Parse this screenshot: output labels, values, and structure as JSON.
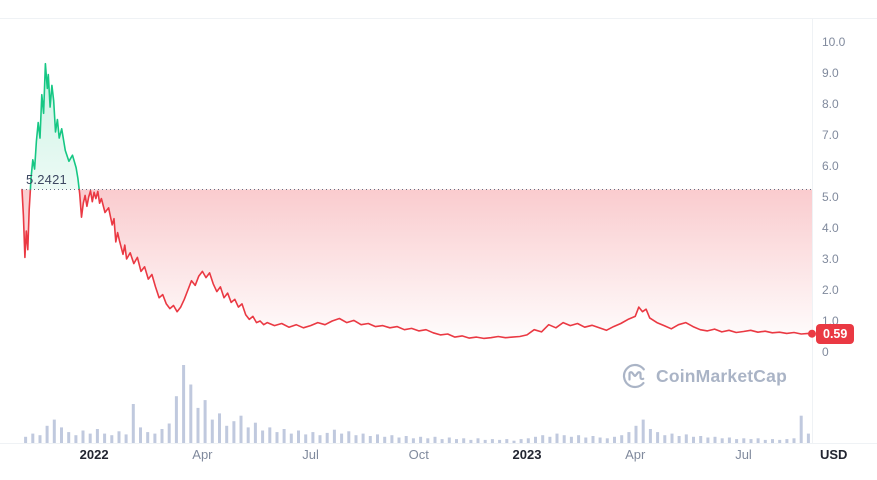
{
  "watermark_text": "CoinMarketCap",
  "baseline_label": "5.2421",
  "current_price_label": "0.59",
  "currency_label": "USD",
  "colors": {
    "up": "#16c784",
    "down": "#ea3943",
    "volume": "#b9c3da",
    "grid": "#eff2f5",
    "baseline_dotted": "#667085",
    "axis_text": "#808a9d",
    "axis_text_strong": "#222531",
    "watermark": "#a6b0c3"
  },
  "chart_data": {
    "type": "line",
    "title": "",
    "ylabel": "USD",
    "ylim": [
      0,
      10
    ],
    "t_range": [
      0,
      21.9
    ],
    "x_unit": "months since Nov 2021",
    "baseline_value": 5.2421,
    "last_price": 0.59,
    "grid": false,
    "y_ticks": [
      {
        "label": "10.0",
        "value": 10
      },
      {
        "label": "9.0",
        "value": 9
      },
      {
        "label": "8.0",
        "value": 8
      },
      {
        "label": "7.0",
        "value": 7
      },
      {
        "label": "6.0",
        "value": 6
      },
      {
        "label": "5.0",
        "value": 5
      },
      {
        "label": "4.0",
        "value": 4
      },
      {
        "label": "3.0",
        "value": 3
      },
      {
        "label": "2.0",
        "value": 2
      },
      {
        "label": "1.0",
        "value": 1
      },
      {
        "label": "0",
        "value": 0
      }
    ],
    "x_ticks": [
      {
        "label": "2022",
        "t": 2,
        "strong": true
      },
      {
        "label": "Apr",
        "t": 5,
        "strong": false
      },
      {
        "label": "Jul",
        "t": 8,
        "strong": false
      },
      {
        "label": "Oct",
        "t": 11,
        "strong": false
      },
      {
        "label": "2023",
        "t": 14,
        "strong": true
      },
      {
        "label": "Apr",
        "t": 17,
        "strong": false
      },
      {
        "label": "Jul",
        "t": 20,
        "strong": false
      }
    ],
    "price_series": [
      [
        0,
        5.24
      ],
      [
        0.04,
        4.4
      ],
      [
        0.08,
        3.05
      ],
      [
        0.12,
        3.9
      ],
      [
        0.16,
        3.3
      ],
      [
        0.2,
        4.6
      ],
      [
        0.25,
        5.6
      ],
      [
        0.3,
        6.2
      ],
      [
        0.35,
        5.9
      ],
      [
        0.4,
        6.8
      ],
      [
        0.45,
        7.4
      ],
      [
        0.5,
        6.9
      ],
      [
        0.55,
        8.3
      ],
      [
        0.6,
        7.7
      ],
      [
        0.65,
        9.3
      ],
      [
        0.7,
        8.5
      ],
      [
        0.73,
        8.95
      ],
      [
        0.78,
        7.9
      ],
      [
        0.83,
        8.6
      ],
      [
        0.88,
        8.1
      ],
      [
        0.93,
        7.1
      ],
      [
        0.98,
        7.5
      ],
      [
        1.03,
        6.9
      ],
      [
        1.1,
        7.2
      ],
      [
        1.2,
        6.5
      ],
      [
        1.3,
        6.15
      ],
      [
        1.4,
        6.35
      ],
      [
        1.5,
        5.95
      ],
      [
        1.55,
        5.6
      ],
      [
        1.6,
        5.1
      ],
      [
        1.65,
        4.35
      ],
      [
        1.7,
        4.8
      ],
      [
        1.75,
        5.05
      ],
      [
        1.8,
        4.7
      ],
      [
        1.85,
        5.0
      ],
      [
        1.9,
        5.2
      ],
      [
        1.95,
        4.85
      ],
      [
        2.0,
        5.15
      ],
      [
        2.05,
        4.95
      ],
      [
        2.1,
        5.18
      ],
      [
        2.15,
        4.8
      ],
      [
        2.2,
        4.95
      ],
      [
        2.3,
        4.5
      ],
      [
        2.4,
        4.65
      ],
      [
        2.5,
        4.1
      ],
      [
        2.55,
        4.3
      ],
      [
        2.6,
        3.55
      ],
      [
        2.65,
        3.85
      ],
      [
        2.7,
        3.6
      ],
      [
        2.8,
        3.15
      ],
      [
        2.85,
        3.45
      ],
      [
        2.9,
        3.0
      ],
      [
        3.0,
        3.2
      ],
      [
        3.1,
        2.85
      ],
      [
        3.2,
        3.05
      ],
      [
        3.3,
        2.6
      ],
      [
        3.4,
        2.75
      ],
      [
        3.5,
        2.35
      ],
      [
        3.6,
        2.5
      ],
      [
        3.7,
        2.1
      ],
      [
        3.8,
        1.75
      ],
      [
        3.9,
        1.85
      ],
      [
        4.0,
        1.55
      ],
      [
        4.1,
        1.4
      ],
      [
        4.2,
        1.5
      ],
      [
        4.3,
        1.3
      ],
      [
        4.4,
        1.45
      ],
      [
        4.5,
        1.7
      ],
      [
        4.6,
        2.0
      ],
      [
        4.7,
        2.3
      ],
      [
        4.8,
        2.15
      ],
      [
        4.9,
        2.45
      ],
      [
        5.0,
        2.6
      ],
      [
        5.1,
        2.4
      ],
      [
        5.2,
        2.55
      ],
      [
        5.3,
        2.2
      ],
      [
        5.4,
        1.95
      ],
      [
        5.5,
        2.1
      ],
      [
        5.6,
        1.75
      ],
      [
        5.7,
        1.9
      ],
      [
        5.8,
        1.6
      ],
      [
        5.9,
        1.7
      ],
      [
        6.0,
        1.45
      ],
      [
        6.1,
        1.55
      ],
      [
        6.2,
        1.2
      ],
      [
        6.3,
        1.05
      ],
      [
        6.4,
        1.15
      ],
      [
        6.5,
        0.95
      ],
      [
        6.6,
        1.0
      ],
      [
        6.7,
        0.88
      ],
      [
        6.8,
        0.95
      ],
      [
        7.0,
        0.85
      ],
      [
        7.2,
        0.92
      ],
      [
        7.4,
        0.8
      ],
      [
        7.6,
        0.88
      ],
      [
        7.8,
        0.78
      ],
      [
        8.0,
        0.85
      ],
      [
        8.2,
        0.95
      ],
      [
        8.4,
        0.88
      ],
      [
        8.6,
        1.0
      ],
      [
        8.8,
        1.08
      ],
      [
        9.0,
        0.95
      ],
      [
        9.2,
        1.02
      ],
      [
        9.4,
        0.88
      ],
      [
        9.6,
        0.92
      ],
      [
        9.8,
        0.82
      ],
      [
        10.0,
        0.85
      ],
      [
        10.2,
        0.78
      ],
      [
        10.4,
        0.82
      ],
      [
        10.6,
        0.72
      ],
      [
        10.8,
        0.76
      ],
      [
        11.0,
        0.68
      ],
      [
        11.2,
        0.72
      ],
      [
        11.4,
        0.62
      ],
      [
        11.6,
        0.55
      ],
      [
        11.8,
        0.58
      ],
      [
        12.0,
        0.48
      ],
      [
        12.2,
        0.52
      ],
      [
        12.4,
        0.45
      ],
      [
        12.6,
        0.48
      ],
      [
        12.8,
        0.44
      ],
      [
        13.0,
        0.46
      ],
      [
        13.2,
        0.5
      ],
      [
        13.4,
        0.46
      ],
      [
        13.6,
        0.48
      ],
      [
        13.8,
        0.5
      ],
      [
        14.0,
        0.55
      ],
      [
        14.2,
        0.72
      ],
      [
        14.4,
        0.65
      ],
      [
        14.6,
        0.88
      ],
      [
        14.8,
        0.78
      ],
      [
        15.0,
        0.95
      ],
      [
        15.2,
        0.85
      ],
      [
        15.4,
        0.92
      ],
      [
        15.6,
        0.8
      ],
      [
        15.8,
        0.86
      ],
      [
        16.0,
        0.78
      ],
      [
        16.2,
        0.7
      ],
      [
        16.4,
        0.82
      ],
      [
        16.6,
        0.92
      ],
      [
        16.8,
        1.05
      ],
      [
        17.0,
        1.15
      ],
      [
        17.1,
        1.45
      ],
      [
        17.2,
        1.3
      ],
      [
        17.3,
        1.38
      ],
      [
        17.4,
        1.1
      ],
      [
        17.6,
        0.95
      ],
      [
        17.8,
        0.85
      ],
      [
        18.0,
        0.75
      ],
      [
        18.2,
        0.88
      ],
      [
        18.4,
        0.95
      ],
      [
        18.6,
        0.82
      ],
      [
        18.8,
        0.72
      ],
      [
        19.0,
        0.68
      ],
      [
        19.2,
        0.74
      ],
      [
        19.4,
        0.65
      ],
      [
        19.6,
        0.7
      ],
      [
        19.8,
        0.63
      ],
      [
        20.0,
        0.66
      ],
      [
        20.2,
        0.7
      ],
      [
        20.4,
        0.64
      ],
      [
        20.6,
        0.67
      ],
      [
        20.8,
        0.62
      ],
      [
        21.0,
        0.64
      ],
      [
        21.2,
        0.6
      ],
      [
        21.4,
        0.63
      ],
      [
        21.6,
        0.58
      ],
      [
        21.8,
        0.6
      ],
      [
        21.9,
        0.59
      ]
    ],
    "volume_series": [
      0.08,
      0.12,
      0.1,
      0.22,
      0.3,
      0.2,
      0.14,
      0.1,
      0.16,
      0.12,
      0.18,
      0.12,
      0.1,
      0.15,
      0.11,
      0.5,
      0.2,
      0.14,
      0.12,
      0.18,
      0.25,
      0.6,
      1.0,
      0.75,
      0.45,
      0.55,
      0.3,
      0.38,
      0.22,
      0.28,
      0.35,
      0.2,
      0.26,
      0.16,
      0.2,
      0.14,
      0.18,
      0.12,
      0.16,
      0.11,
      0.14,
      0.1,
      0.13,
      0.17,
      0.12,
      0.15,
      0.1,
      0.12,
      0.09,
      0.11,
      0.08,
      0.1,
      0.07,
      0.09,
      0.06,
      0.08,
      0.06,
      0.08,
      0.05,
      0.07,
      0.05,
      0.06,
      0.04,
      0.06,
      0.04,
      0.05,
      0.04,
      0.05,
      0.03,
      0.05,
      0.06,
      0.08,
      0.1,
      0.08,
      0.12,
      0.1,
      0.08,
      0.1,
      0.07,
      0.09,
      0.07,
      0.06,
      0.08,
      0.1,
      0.14,
      0.22,
      0.3,
      0.18,
      0.14,
      0.1,
      0.12,
      0.09,
      0.11,
      0.08,
      0.09,
      0.07,
      0.08,
      0.06,
      0.07,
      0.05,
      0.06,
      0.05,
      0.06,
      0.04,
      0.05,
      0.04,
      0.05,
      0.06,
      0.35,
      0.12
    ]
  }
}
